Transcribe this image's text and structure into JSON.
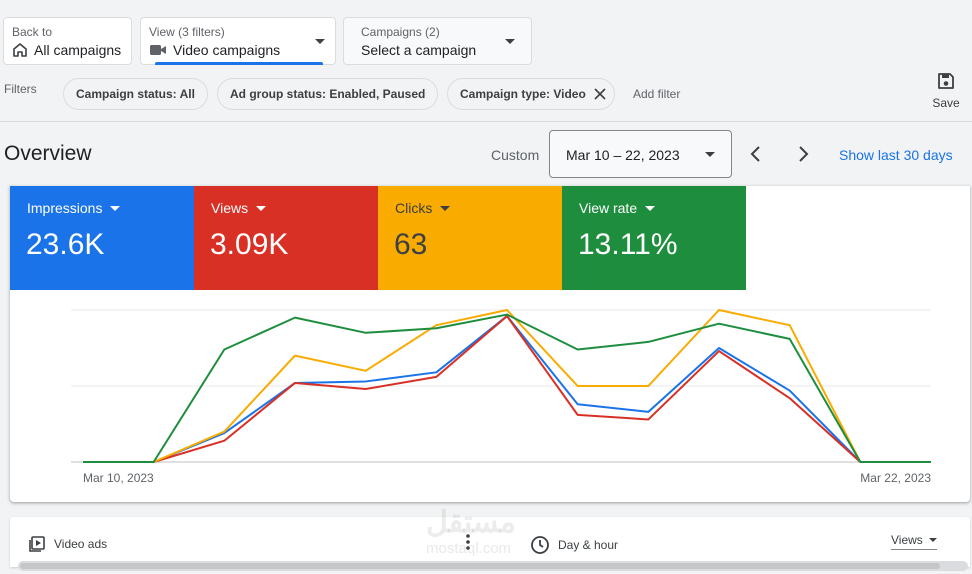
{
  "back": {
    "small": "Back to",
    "label": "All campaigns"
  },
  "view": {
    "small": "View (3 filters)",
    "label": "Video campaigns"
  },
  "campaigns": {
    "small": "Campaigns (2)",
    "label": "Select a campaign"
  },
  "filters": {
    "label": "Filters",
    "chips": [
      "Campaign status: All",
      "Ad group status: Enabled, Paused",
      "Campaign type: Video"
    ],
    "add_filter": "Add filter"
  },
  "save_label": "Save",
  "overview": {
    "title": "Overview",
    "custom_label": "Custom",
    "date_range": "Mar 10 – 22, 2023",
    "show_last": "Show last 30 days"
  },
  "metrics": [
    {
      "label": "Impressions",
      "value": "23.6K",
      "color": "#1a73e8"
    },
    {
      "label": "Views",
      "value": "3.09K",
      "color": "#d93025"
    },
    {
      "label": "Clicks",
      "value": "63",
      "color": "#f9ab00"
    },
    {
      "label": "View rate",
      "value": "13.11%",
      "color": "#1e8e3e"
    }
  ],
  "chart_data": {
    "type": "line",
    "x": [
      "Mar 10, 2023",
      "Mar 11, 2023",
      "Mar 12, 2023",
      "Mar 13, 2023",
      "Mar 14, 2023",
      "Mar 15, 2023",
      "Mar 16, 2023",
      "Mar 17, 2023",
      "Mar 18, 2023",
      "Mar 19, 2023",
      "Mar 20, 2023",
      "Mar 21, 2023",
      "Mar 22, 2023"
    ],
    "x_tick_labels": [
      "Mar 10, 2023",
      "Mar 22, 2023"
    ],
    "ylim": [
      0,
      1
    ],
    "grid": true,
    "series": [
      {
        "color": "#1a73e8",
        "values": [
          0,
          0,
          0.19,
          0.52,
          0.53,
          0.59,
          0.96,
          0.38,
          0.33,
          0.75,
          0.47,
          0,
          0
        ]
      },
      {
        "color": "#d93025",
        "values": [
          0,
          0,
          0.14,
          0.52,
          0.48,
          0.56,
          0.96,
          0.31,
          0.28,
          0.73,
          0.42,
          0,
          0
        ]
      },
      {
        "color": "#f9ab00",
        "values": [
          0,
          0,
          0.2,
          0.7,
          0.6,
          0.9,
          1.0,
          0.5,
          0.5,
          1.0,
          0.9,
          0,
          0
        ]
      },
      {
        "color": "#1e8e3e",
        "values": [
          0,
          0,
          0.74,
          0.95,
          0.85,
          0.88,
          0.97,
          0.74,
          0.79,
          0.91,
          0.81,
          0,
          0
        ]
      }
    ]
  },
  "bottom": {
    "video_ads": "Video ads",
    "day_hour": "Day & hour",
    "views_select": "Views"
  },
  "watermark": {
    "arabic": "مستقل",
    "latin": "mostaql.com"
  }
}
